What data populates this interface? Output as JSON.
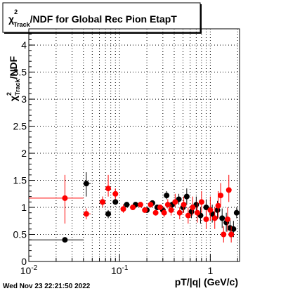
{
  "chart_data": {
    "type": "scatter",
    "title": "χ²Track/NDF for Global Rec Pion EtapT",
    "title_parts": {
      "pre": "χ",
      "sup": "2",
      "sub": "Track",
      "post": "/NDF for Global Rec Pion EtapT"
    },
    "xlabel": "pT/|q| (GeV/c)",
    "ylabel": "χ²Track/NDF",
    "ylabel_parts": {
      "pre": "χ",
      "sup": "2",
      "sub": "Track",
      "post": "/NDF"
    },
    "x_scale": "log",
    "xlim": [
      0.01,
      2.1
    ],
    "ylim": [
      0,
      4.3
    ],
    "grid": true,
    "x_ticks": [
      {
        "value": 0.01,
        "label": "10",
        "sup": "-2"
      },
      {
        "value": 0.1,
        "label": "10",
        "sup": "-1"
      },
      {
        "value": 1,
        "label": "1",
        "sup": ""
      }
    ],
    "y_ticks": [
      {
        "value": 0,
        "label": "0"
      },
      {
        "value": 0.5,
        "label": "0.5"
      },
      {
        "value": 1,
        "label": "1"
      },
      {
        "value": 1.5,
        "label": "1.5"
      },
      {
        "value": 2,
        "label": "2"
      },
      {
        "value": 2.5,
        "label": "2.5"
      },
      {
        "value": 3,
        "label": "3"
      },
      {
        "value": 3.5,
        "label": "3.5"
      },
      {
        "value": 4,
        "label": "4"
      }
    ],
    "series": [
      {
        "color": "#000000",
        "points": [
          {
            "x": 0.025,
            "y": 0.4,
            "xlo": 0.01,
            "xhi": 0.04,
            "ylo": 0.35,
            "yhi": 0.45
          },
          {
            "x": 0.043,
            "y": 1.44,
            "xlo": 0.04,
            "xhi": 0.048,
            "ylo": 1.2,
            "yhi": 1.65
          },
          {
            "x": 0.065,
            "y": 1.1,
            "xlo": 0.06,
            "xhi": 0.07,
            "ylo": 1.0,
            "yhi": 1.2
          },
          {
            "x": 0.075,
            "y": 0.88,
            "xlo": 0.07,
            "xhi": 0.08,
            "ylo": 0.8,
            "yhi": 0.95
          },
          {
            "x": 0.09,
            "y": 1.1,
            "xlo": 0.085,
            "xhi": 0.095,
            "ylo": 1.05,
            "yhi": 1.15
          },
          {
            "x": 0.12,
            "y": 1.05,
            "xlo": 0.11,
            "xhi": 0.13,
            "ylo": 1.0,
            "yhi": 1.1
          },
          {
            "x": 0.15,
            "y": 1.05,
            "xlo": 0.14,
            "xhi": 0.16,
            "ylo": 1.0,
            "yhi": 1.1
          },
          {
            "x": 0.2,
            "y": 0.95,
            "xlo": 0.19,
            "xhi": 0.21,
            "ylo": 0.9,
            "yhi": 1.0
          },
          {
            "x": 0.23,
            "y": 1.08,
            "xlo": 0.22,
            "xhi": 0.24,
            "ylo": 1.03,
            "yhi": 1.13
          },
          {
            "x": 0.26,
            "y": 1.0,
            "xlo": 0.25,
            "xhi": 0.27,
            "ylo": 0.95,
            "yhi": 1.05
          },
          {
            "x": 0.3,
            "y": 0.95,
            "xlo": 0.29,
            "xhi": 0.31,
            "ylo": 0.9,
            "yhi": 1.0
          },
          {
            "x": 0.33,
            "y": 1.22,
            "xlo": 0.32,
            "xhi": 0.34,
            "ylo": 1.15,
            "yhi": 1.3
          },
          {
            "x": 0.38,
            "y": 1.05,
            "xlo": 0.37,
            "xhi": 0.39,
            "ylo": 1.0,
            "yhi": 1.1
          },
          {
            "x": 0.45,
            "y": 1.15,
            "xlo": 0.44,
            "xhi": 0.46,
            "ylo": 1.05,
            "yhi": 1.25
          },
          {
            "x": 0.5,
            "y": 1.0,
            "xlo": 0.49,
            "xhi": 0.51,
            "ylo": 0.9,
            "yhi": 1.1
          },
          {
            "x": 0.55,
            "y": 1.2,
            "xlo": 0.54,
            "xhi": 0.56,
            "ylo": 1.05,
            "yhi": 1.35
          },
          {
            "x": 0.62,
            "y": 0.92,
            "xlo": 0.61,
            "xhi": 0.63,
            "ylo": 0.8,
            "yhi": 1.05
          },
          {
            "x": 0.7,
            "y": 1.05,
            "xlo": 0.69,
            "xhi": 0.71,
            "ylo": 0.9,
            "yhi": 1.2
          },
          {
            "x": 0.78,
            "y": 0.85,
            "xlo": 0.77,
            "xhi": 0.79,
            "ylo": 0.7,
            "yhi": 1.0
          },
          {
            "x": 0.9,
            "y": 1.0,
            "xlo": 0.88,
            "xhi": 0.92,
            "ylo": 0.85,
            "yhi": 1.15
          },
          {
            "x": 1.05,
            "y": 0.88,
            "xlo": 1.03,
            "xhi": 1.07,
            "ylo": 0.72,
            "yhi": 1.05
          },
          {
            "x": 1.2,
            "y": 0.95,
            "xlo": 1.18,
            "xhi": 1.22,
            "ylo": 0.78,
            "yhi": 1.12
          },
          {
            "x": 1.35,
            "y": 0.8,
            "xlo": 1.32,
            "xhi": 1.38,
            "ylo": 0.62,
            "yhi": 0.98
          },
          {
            "x": 1.5,
            "y": 0.72,
            "xlo": 1.47,
            "xhi": 1.53,
            "ylo": 0.55,
            "yhi": 0.9
          },
          {
            "x": 1.65,
            "y": 0.62,
            "xlo": 1.62,
            "xhi": 1.68,
            "ylo": 0.45,
            "yhi": 0.8
          },
          {
            "x": 1.8,
            "y": 0.6,
            "xlo": 1.77,
            "xhi": 1.83,
            "ylo": 0.45,
            "yhi": 0.75
          },
          {
            "x": 1.95,
            "y": 0.9,
            "xlo": 1.92,
            "xhi": 1.98,
            "ylo": 0.8,
            "yhi": 1.0
          }
        ]
      },
      {
        "color": "#ff0000",
        "points": [
          {
            "x": 0.025,
            "y": 1.17,
            "xlo": 0.01,
            "xhi": 0.04,
            "ylo": 0.7,
            "yhi": 1.6
          },
          {
            "x": 0.043,
            "y": 0.88,
            "xlo": 0.04,
            "xhi": 0.048,
            "ylo": 0.78,
            "yhi": 0.98
          },
          {
            "x": 0.065,
            "y": 1.1,
            "xlo": 0.06,
            "xhi": 0.07,
            "ylo": 1.0,
            "yhi": 1.2
          },
          {
            "x": 0.075,
            "y": 1.35,
            "xlo": 0.07,
            "xhi": 0.08,
            "ylo": 1.2,
            "yhi": 1.6
          },
          {
            "x": 0.09,
            "y": 1.25,
            "xlo": 0.085,
            "xhi": 0.095,
            "ylo": 1.15,
            "yhi": 1.35
          },
          {
            "x": 0.11,
            "y": 0.97,
            "xlo": 0.105,
            "xhi": 0.115,
            "ylo": 0.9,
            "yhi": 1.05
          },
          {
            "x": 0.14,
            "y": 1.0,
            "xlo": 0.13,
            "xhi": 0.15,
            "ylo": 0.95,
            "yhi": 1.05
          },
          {
            "x": 0.17,
            "y": 1.05,
            "xlo": 0.16,
            "xhi": 0.18,
            "ylo": 1.0,
            "yhi": 1.1
          },
          {
            "x": 0.19,
            "y": 0.95,
            "xlo": 0.18,
            "xhi": 0.2,
            "ylo": 0.9,
            "yhi": 1.0
          },
          {
            "x": 0.22,
            "y": 1.05,
            "xlo": 0.21,
            "xhi": 0.23,
            "ylo": 1.0,
            "yhi": 1.1
          },
          {
            "x": 0.25,
            "y": 0.9,
            "xlo": 0.24,
            "xhi": 0.26,
            "ylo": 0.85,
            "yhi": 0.95
          },
          {
            "x": 0.28,
            "y": 1.0,
            "xlo": 0.27,
            "xhi": 0.29,
            "ylo": 0.95,
            "yhi": 1.05
          },
          {
            "x": 0.31,
            "y": 0.9,
            "xlo": 0.3,
            "xhi": 0.32,
            "ylo": 0.82,
            "yhi": 1.0
          },
          {
            "x": 0.34,
            "y": 1.05,
            "xlo": 0.33,
            "xhi": 0.35,
            "ylo": 0.98,
            "yhi": 1.15
          },
          {
            "x": 0.37,
            "y": 0.95,
            "xlo": 0.36,
            "xhi": 0.38,
            "ylo": 0.85,
            "yhi": 1.05
          },
          {
            "x": 0.41,
            "y": 1.1,
            "xlo": 0.4,
            "xhi": 0.42,
            "ylo": 1.0,
            "yhi": 1.25
          },
          {
            "x": 0.46,
            "y": 0.9,
            "xlo": 0.45,
            "xhi": 0.47,
            "ylo": 0.78,
            "yhi": 1.0
          },
          {
            "x": 0.51,
            "y": 1.05,
            "xlo": 0.5,
            "xhi": 0.52,
            "ylo": 0.9,
            "yhi": 1.2
          },
          {
            "x": 0.57,
            "y": 0.85,
            "xlo": 0.56,
            "xhi": 0.58,
            "ylo": 0.7,
            "yhi": 1.0
          },
          {
            "x": 0.64,
            "y": 1.0,
            "xlo": 0.63,
            "xhi": 0.65,
            "ylo": 0.85,
            "yhi": 1.2
          },
          {
            "x": 0.72,
            "y": 0.9,
            "xlo": 0.71,
            "xhi": 0.73,
            "ylo": 0.72,
            "yhi": 1.1
          },
          {
            "x": 0.8,
            "y": 1.1,
            "xlo": 0.79,
            "xhi": 0.81,
            "ylo": 0.9,
            "yhi": 1.3
          },
          {
            "x": 0.9,
            "y": 0.78,
            "xlo": 0.88,
            "xhi": 0.92,
            "ylo": 0.6,
            "yhi": 0.95
          },
          {
            "x": 1.0,
            "y": 0.95,
            "xlo": 0.98,
            "xhi": 1.02,
            "ylo": 0.75,
            "yhi": 1.2
          },
          {
            "x": 1.12,
            "y": 0.8,
            "xlo": 1.1,
            "xhi": 1.14,
            "ylo": 0.6,
            "yhi": 1.0
          },
          {
            "x": 1.22,
            "y": 1.03,
            "xlo": 1.2,
            "xhi": 1.24,
            "ylo": 0.8,
            "yhi": 1.3
          },
          {
            "x": 1.3,
            "y": 1.22,
            "xlo": 1.28,
            "xhi": 1.32,
            "ylo": 1.0,
            "yhi": 1.45
          },
          {
            "x": 1.4,
            "y": 0.5,
            "xlo": 1.37,
            "xhi": 1.43,
            "ylo": 0.35,
            "yhi": 0.65
          },
          {
            "x": 1.55,
            "y": 0.78,
            "xlo": 1.52,
            "xhi": 1.58,
            "ylo": 0.55,
            "yhi": 1.0
          },
          {
            "x": 1.6,
            "y": 1.32,
            "xlo": 1.57,
            "xhi": 1.63,
            "ylo": 1.1,
            "yhi": 1.6
          },
          {
            "x": 1.7,
            "y": 0.5,
            "xlo": 1.67,
            "xhi": 1.73,
            "ylo": 0.35,
            "yhi": 0.65
          }
        ]
      }
    ]
  },
  "date_stamp": "Wed Nov 23 22:21:50 2022"
}
